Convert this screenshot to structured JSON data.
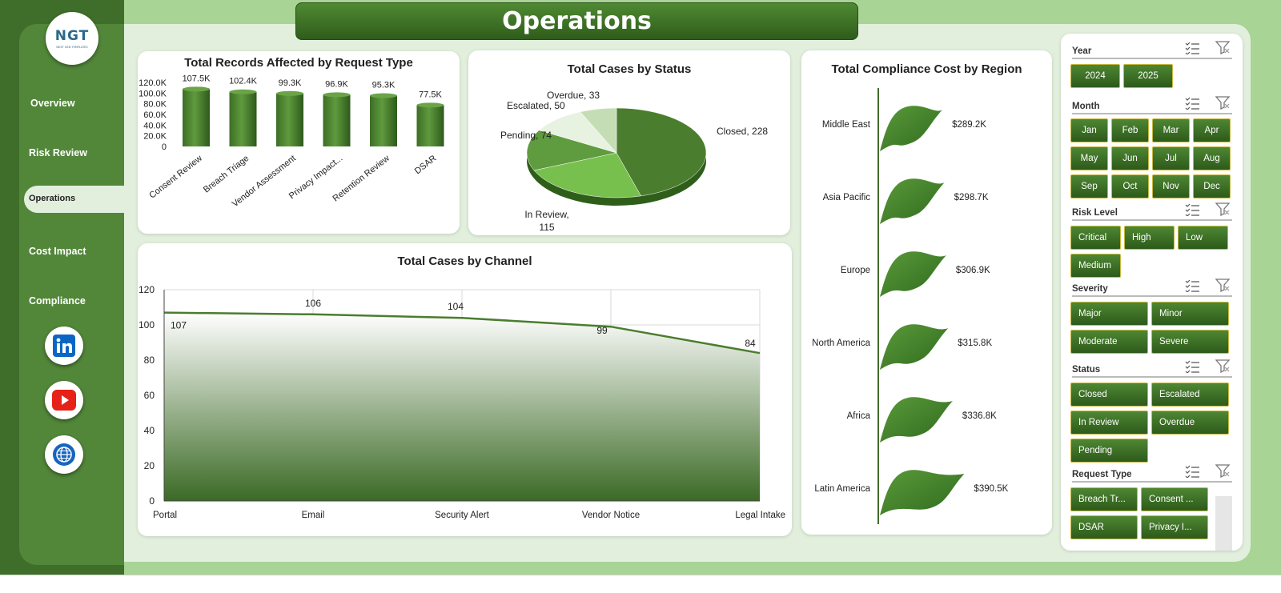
{
  "header": {
    "title": "Operations"
  },
  "logo": {
    "text": "NGT",
    "subtext": "NEXT GEN TEMPLATES"
  },
  "nav": {
    "items": [
      "Overview",
      "Risk Review",
      "Operations",
      "Cost Impact",
      "Compliance"
    ],
    "active": "Operations"
  },
  "social": {
    "icons": [
      "linkedin-icon",
      "youtube-icon",
      "globe-icon"
    ]
  },
  "colors": {
    "dark_green": "#2f5c1b",
    "mid_green": "#52873a",
    "light_green": "#a8d496",
    "accent_border": "#c8b940"
  },
  "charts": {
    "records": {
      "title": "Total Records Affected by Request Type"
    },
    "status": {
      "title": "Total Cases by Status"
    },
    "region": {
      "title": "Total Compliance Cost by Region"
    },
    "channel": {
      "title": "Total Cases by Channel"
    }
  },
  "chart_data": [
    {
      "type": "bar",
      "title": "Total Records Affected by Request Type",
      "categories": [
        "Consent Review",
        "Breach Triage",
        "Vendor Assessment",
        "Privacy Impact...",
        "Retention Review",
        "DSAR"
      ],
      "values": [
        107.5,
        102.4,
        99.3,
        96.9,
        95.3,
        77.5
      ],
      "value_labels": [
        "107.5K",
        "102.4K",
        "99.3K",
        "96.9K",
        "95.3K",
        "77.5K"
      ],
      "yticks": [
        "0",
        "20.0K",
        "40.0K",
        "60.0K",
        "80.0K",
        "100.0K",
        "120.0K"
      ],
      "ylim": [
        0,
        120
      ]
    },
    {
      "type": "pie",
      "title": "Total Cases by Status",
      "categories": [
        "Closed",
        "In Review",
        "Pending",
        "Escalated",
        "Overdue"
      ],
      "values": [
        228,
        115,
        74,
        50,
        33
      ],
      "colors": [
        "#4a7e2e",
        "#78c04e",
        "#5f9b3f",
        "#e8f2e0",
        "#c5ddb5"
      ]
    },
    {
      "type": "bar",
      "title": "Total Compliance Cost by Region",
      "categories": [
        "Middle East",
        "Asia Pacific",
        "Europe",
        "North America",
        "Africa",
        "Latin America"
      ],
      "values": [
        289.2,
        298.7,
        306.9,
        315.8,
        336.8,
        390.5
      ],
      "value_labels": [
        "$289.2K",
        "$298.7K",
        "$306.9K",
        "$315.8K",
        "$336.8K",
        "$390.5K"
      ]
    },
    {
      "type": "area",
      "title": "Total Cases by Channel",
      "categories": [
        "Portal",
        "Email",
        "Security Alert",
        "Vendor Notice",
        "Legal Intake"
      ],
      "values": [
        107,
        106,
        104,
        99,
        84
      ],
      "yticks": [
        "0",
        "20",
        "40",
        "60",
        "80",
        "100",
        "120"
      ],
      "ylim": [
        0,
        120
      ]
    }
  ],
  "slicers": [
    {
      "title": "Year",
      "options": [
        "2024",
        "2025"
      ]
    },
    {
      "title": "Month",
      "options": [
        "Jan",
        "Feb",
        "Mar",
        "Apr",
        "May",
        "Jun",
        "Jul",
        "Aug",
        "Sep",
        "Oct",
        "Nov",
        "Dec"
      ]
    },
    {
      "title": "Risk Level",
      "options": [
        "Critical",
        "High",
        "Low",
        "Medium"
      ]
    },
    {
      "title": "Severity",
      "options": [
        "Major",
        "Minor",
        "Moderate",
        "Severe"
      ]
    },
    {
      "title": "Status",
      "options": [
        "Closed",
        "Escalated",
        "In Review",
        "Overdue",
        "Pending"
      ]
    },
    {
      "title": "Request Type",
      "options": [
        "Breach Tr...",
        "Consent ...",
        "DSAR",
        "Privacy I..."
      ]
    }
  ]
}
